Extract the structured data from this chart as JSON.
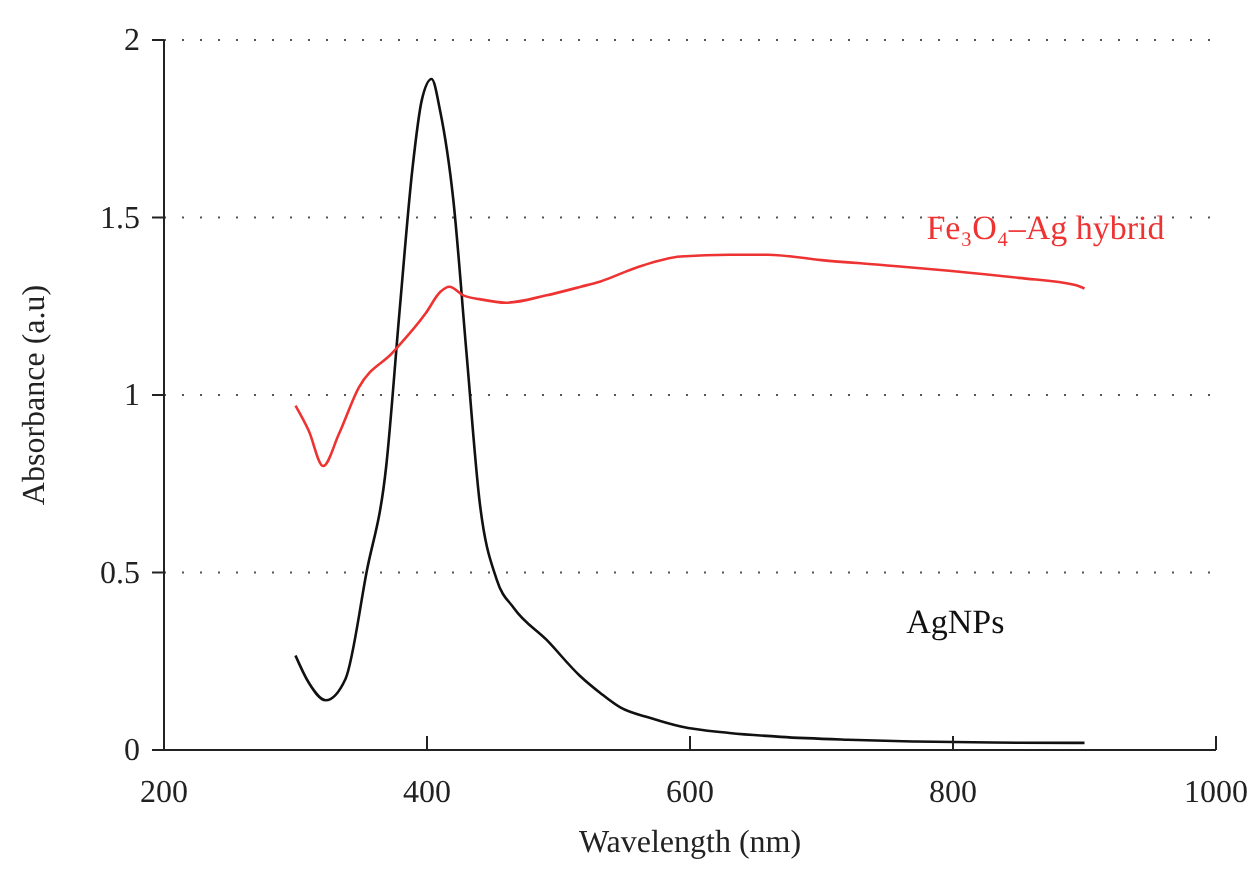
{
  "chart_data": {
    "type": "line",
    "xlabel": "Wavelength (nm)",
    "ylabel": "Absorbance (a.u)",
    "xlim": [
      200,
      1000
    ],
    "xticks": [
      200,
      400,
      600,
      800,
      1000
    ],
    "ylim": [
      0,
      2
    ],
    "yticks": [
      0,
      0.5,
      1,
      1.5,
      2
    ],
    "grid": "y",
    "marker": "none",
    "line_style": "solid",
    "series": [
      {
        "name": "AgNPs",
        "color": "#111111",
        "x": [
          300,
          310,
          323,
          338,
          354,
          369,
          379,
          389,
          396,
          403.5,
          410,
          420,
          430,
          440,
          453,
          466,
          491,
          516,
          532,
          547,
          570,
          593,
          630,
          669,
          720,
          771,
          830,
          893,
          900
        ],
        "values": [
          0.266,
          0.19,
          0.14,
          0.2,
          0.5,
          0.8,
          1.23,
          1.64,
          1.83,
          1.89,
          1.8,
          1.55,
          1.12,
          0.7,
          0.48,
          0.4,
          0.31,
          0.21,
          0.16,
          0.12,
          0.09,
          0.066,
          0.048,
          0.037,
          0.029,
          0.024,
          0.021,
          0.02,
          0.02
        ]
      },
      {
        "name": "Fe₃O₄–Ag hybrid",
        "color": "#ee3333",
        "x": [
          300,
          310,
          321,
          333,
          348,
          374,
          399,
          410,
          417,
          428,
          440,
          460,
          490,
          517,
          532,
          560,
          593,
          630,
          659,
          700,
          750,
          797,
          850,
          893,
          900
        ],
        "values": [
          0.97,
          0.9,
          0.8,
          0.89,
          1.02,
          1.12,
          1.23,
          1.29,
          1.305,
          1.28,
          1.27,
          1.26,
          1.28,
          1.305,
          1.32,
          1.36,
          1.39,
          1.395,
          1.395,
          1.38,
          1.365,
          1.35,
          1.33,
          1.31,
          1.3
        ]
      }
    ]
  }
}
